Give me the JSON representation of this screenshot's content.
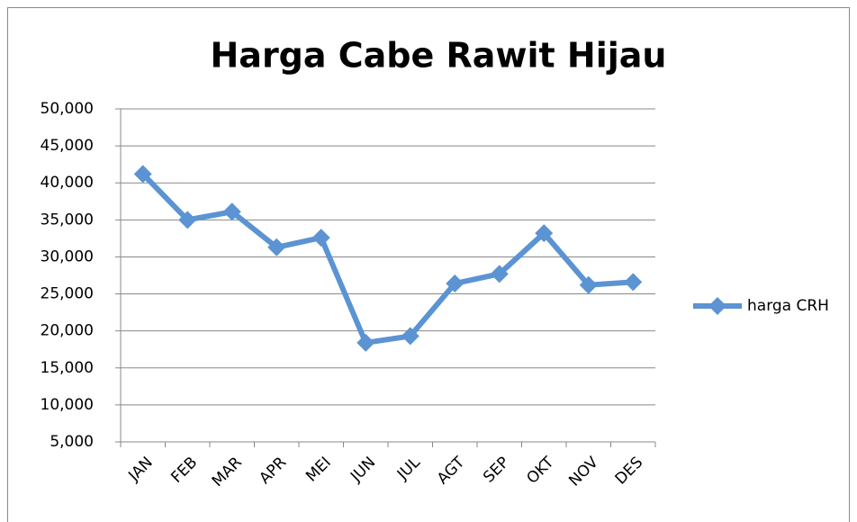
{
  "chart_data": {
    "type": "line",
    "title": "Harga Cabe Rawit Hijau",
    "categories": [
      "JAN",
      "FEB",
      "MAR",
      "APR",
      "MEI",
      "JUN",
      "JUL",
      "AGT",
      "SEP",
      "OKT",
      "NOV",
      "DES"
    ],
    "series": [
      {
        "name": "harga CRH",
        "color": "#5b93d3",
        "values": [
          41200,
          35000,
          36100,
          31300,
          32600,
          18400,
          19300,
          26400,
          27700,
          33200,
          26200,
          26600
        ]
      }
    ],
    "ylim": [
      5000,
      50000
    ],
    "yticks": [
      {
        "value": 5000,
        "label": "5,000"
      },
      {
        "value": 10000,
        "label": "10,000"
      },
      {
        "value": 15000,
        "label": "15,000"
      },
      {
        "value": 20000,
        "label": "20,000"
      },
      {
        "value": 25000,
        "label": "25,000"
      },
      {
        "value": 30000,
        "label": "30,000"
      },
      {
        "value": 35000,
        "label": "35,000"
      },
      {
        "value": 40000,
        "label": "40,000"
      },
      {
        "value": 45000,
        "label": "45,000"
      },
      {
        "value": 50000,
        "label": "50,000"
      }
    ],
    "grid": true,
    "legend": "right"
  }
}
